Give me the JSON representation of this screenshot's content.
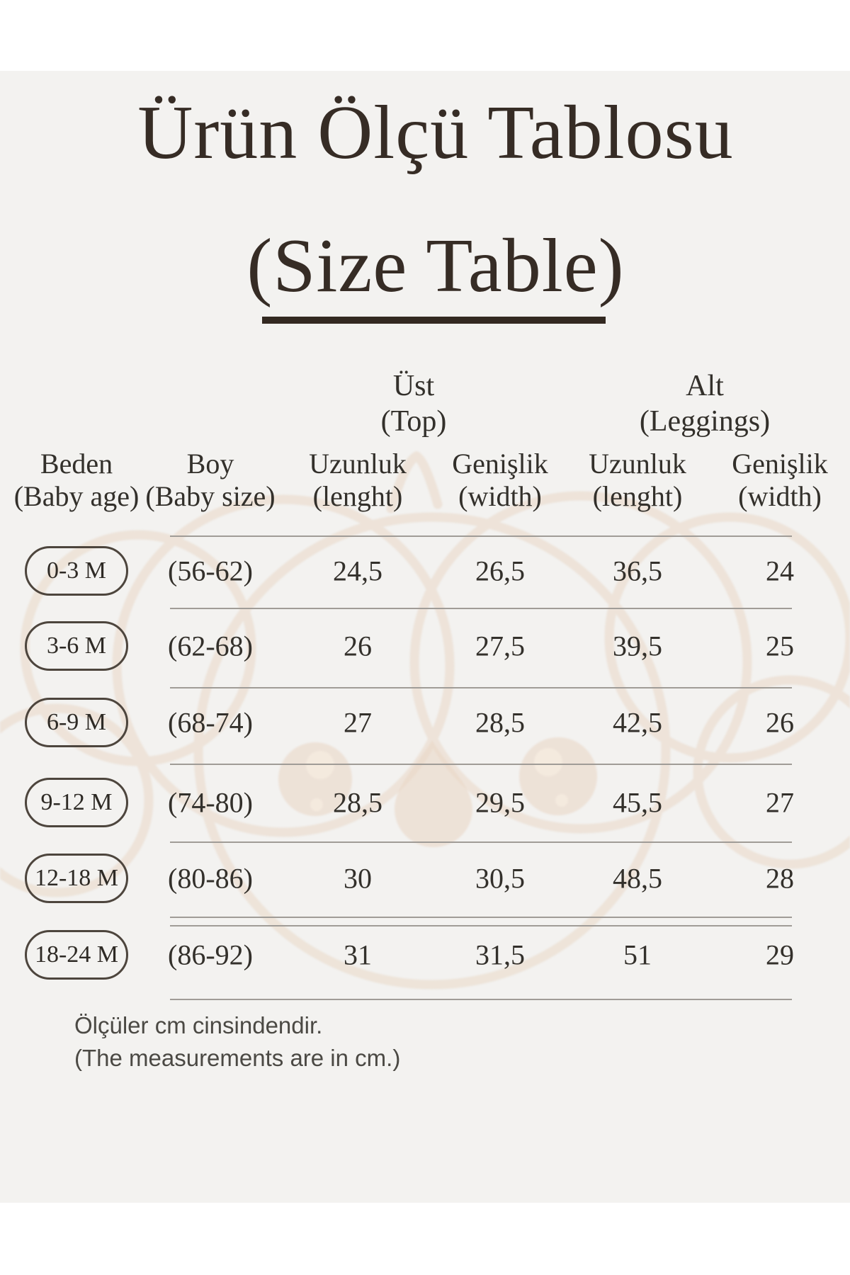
{
  "title": {
    "line1": "Ürün Ölçü Tablosu",
    "line2": "(Size Table)"
  },
  "groups": [
    {
      "label": "Üst",
      "sub": "(Top)"
    },
    {
      "label": "Alt",
      "sub": "(Leggings)"
    }
  ],
  "table": {
    "columns": [
      {
        "label": "Beden",
        "sub": "(Baby age)"
      },
      {
        "label": "Boy",
        "sub": "(Baby size)"
      },
      {
        "label": "Uzunluk",
        "sub": "(lenght)"
      },
      {
        "label": "Genişlik",
        "sub": "(width)"
      },
      {
        "label": "Uzunluk",
        "sub": "(lenght)"
      },
      {
        "label": "Genişlik",
        "sub": "(width)"
      }
    ],
    "rows": [
      {
        "beden": "0-3 M",
        "boy": "(56-62)",
        "ust_uzunluk": "24,5",
        "ust_genislik": "26,5",
        "alt_uzunluk": "36,5",
        "alt_genislik": "24"
      },
      {
        "beden": "3-6 M",
        "boy": "(62-68)",
        "ust_uzunluk": "26",
        "ust_genislik": "27,5",
        "alt_uzunluk": "39,5",
        "alt_genislik": "25"
      },
      {
        "beden": "6-9 M",
        "boy": "(68-74)",
        "ust_uzunluk": "27",
        "ust_genislik": "28,5",
        "alt_uzunluk": "42,5",
        "alt_genislik": "26"
      },
      {
        "beden": "9-12 M",
        "boy": "(74-80)",
        "ust_uzunluk": "28,5",
        "ust_genislik": "29,5",
        "alt_uzunluk": "45,5",
        "alt_genislik": "27"
      },
      {
        "beden": "12-18 M",
        "boy": "(80-86)",
        "ust_uzunluk": "30",
        "ust_genislik": "30,5",
        "alt_uzunluk": "48,5",
        "alt_genislik": "28"
      },
      {
        "beden": "18-24 M",
        "boy": "(86-92)",
        "ust_uzunluk": "31",
        "ust_genislik": "31,5",
        "alt_uzunluk": "51",
        "alt_genislik": "29"
      }
    ]
  },
  "footer": {
    "line1": "Ölçüler cm cinsindendir.",
    "line2": "(The measurements are in cm.)"
  },
  "icons": {
    "watermark": "koala-watermark"
  },
  "colors": {
    "photo_bg": "#f3f2f0",
    "title_ink": "#362c25",
    "table_ink": "#33302b",
    "rule": "#a09c97",
    "pill_border": "#4d453d",
    "watermark": "#ead8c7",
    "footer_ink": "#4b4944"
  }
}
